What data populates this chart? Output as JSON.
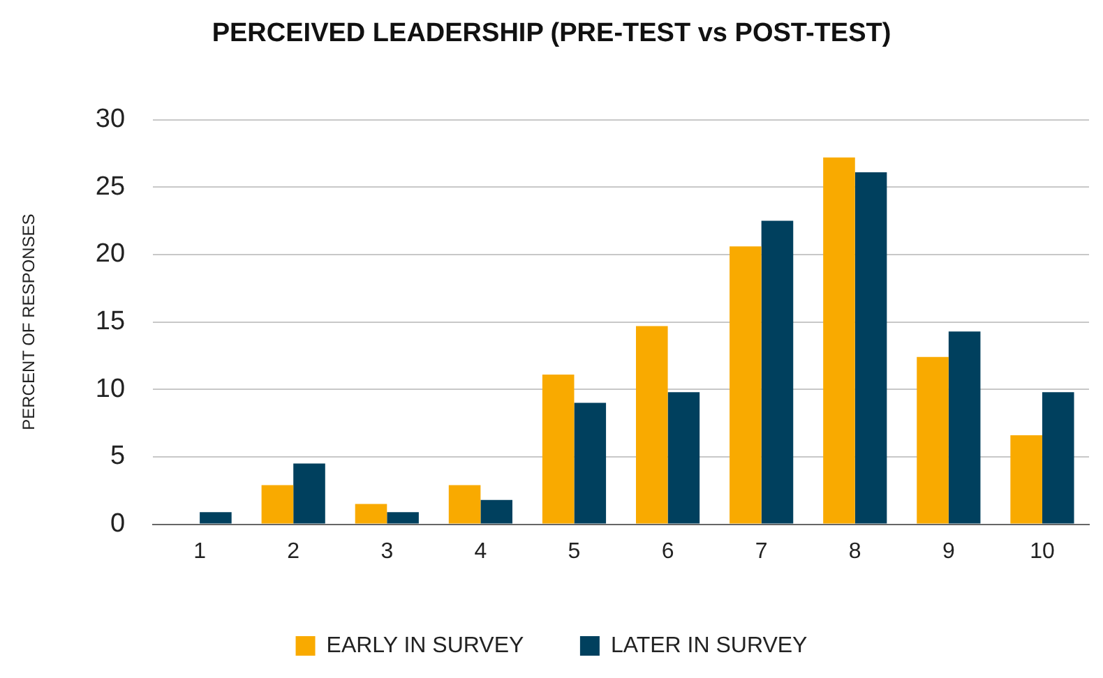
{
  "chart_data": {
    "type": "bar",
    "title": "PERCEIVED LEADERSHIP (PRE-TEST vs POST-TEST)",
    "ylabel": "PERCENT OF RESPONSES",
    "categories": [
      "1",
      "2",
      "3",
      "4",
      "5",
      "6",
      "7",
      "8",
      "9",
      "10"
    ],
    "series": [
      {
        "name": "EARLY IN SURVEY",
        "color": "#f9aa00",
        "values": [
          0,
          2.9,
          1.5,
          2.9,
          11.1,
          14.7,
          20.6,
          27.2,
          12.4,
          6.6
        ]
      },
      {
        "name": "LATER IN SURVEY",
        "color": "#00405e",
        "values": [
          0.9,
          4.5,
          0.9,
          1.8,
          9.0,
          9.8,
          22.5,
          26.1,
          14.3,
          9.8
        ]
      }
    ],
    "ylim": [
      0,
      30
    ],
    "yticks": [
      0,
      5,
      10,
      15,
      20,
      25,
      30
    ],
    "grid": "y",
    "legend": "bottom"
  }
}
